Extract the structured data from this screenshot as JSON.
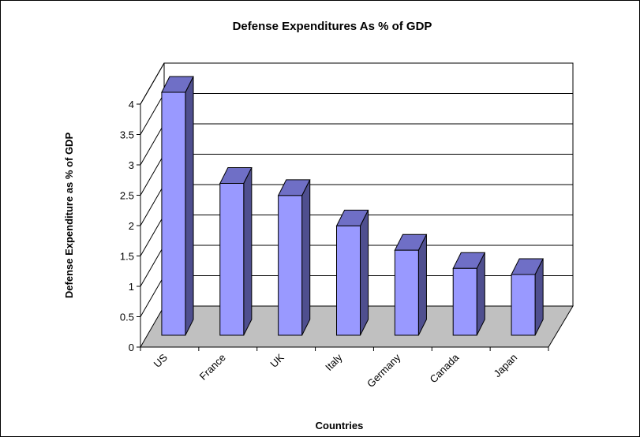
{
  "chart_data": {
    "type": "bar",
    "title": "Defense Expenditures As % of GDP",
    "xlabel": "Countries",
    "ylabel": "Defense Expenditure as % of GDP",
    "categories": [
      "US",
      "France",
      "UK",
      "Italy",
      "Germany",
      "Canada",
      "Japan"
    ],
    "values": [
      4.0,
      2.5,
      2.3,
      1.8,
      1.4,
      1.1,
      1.0
    ],
    "ylim": [
      0,
      4
    ],
    "yticks": [
      "0",
      "0.5",
      "1",
      "1.5",
      "2",
      "2.5",
      "3",
      "3.5",
      "4"
    ],
    "grid": true,
    "legend": "none",
    "style": "3d-column",
    "colors": {
      "bar_front": "#9999ff",
      "bar_side": "#4f4f8f",
      "bar_top": "#6f6fc6",
      "floor": "#c0c0c0",
      "grid": "#000000"
    }
  }
}
